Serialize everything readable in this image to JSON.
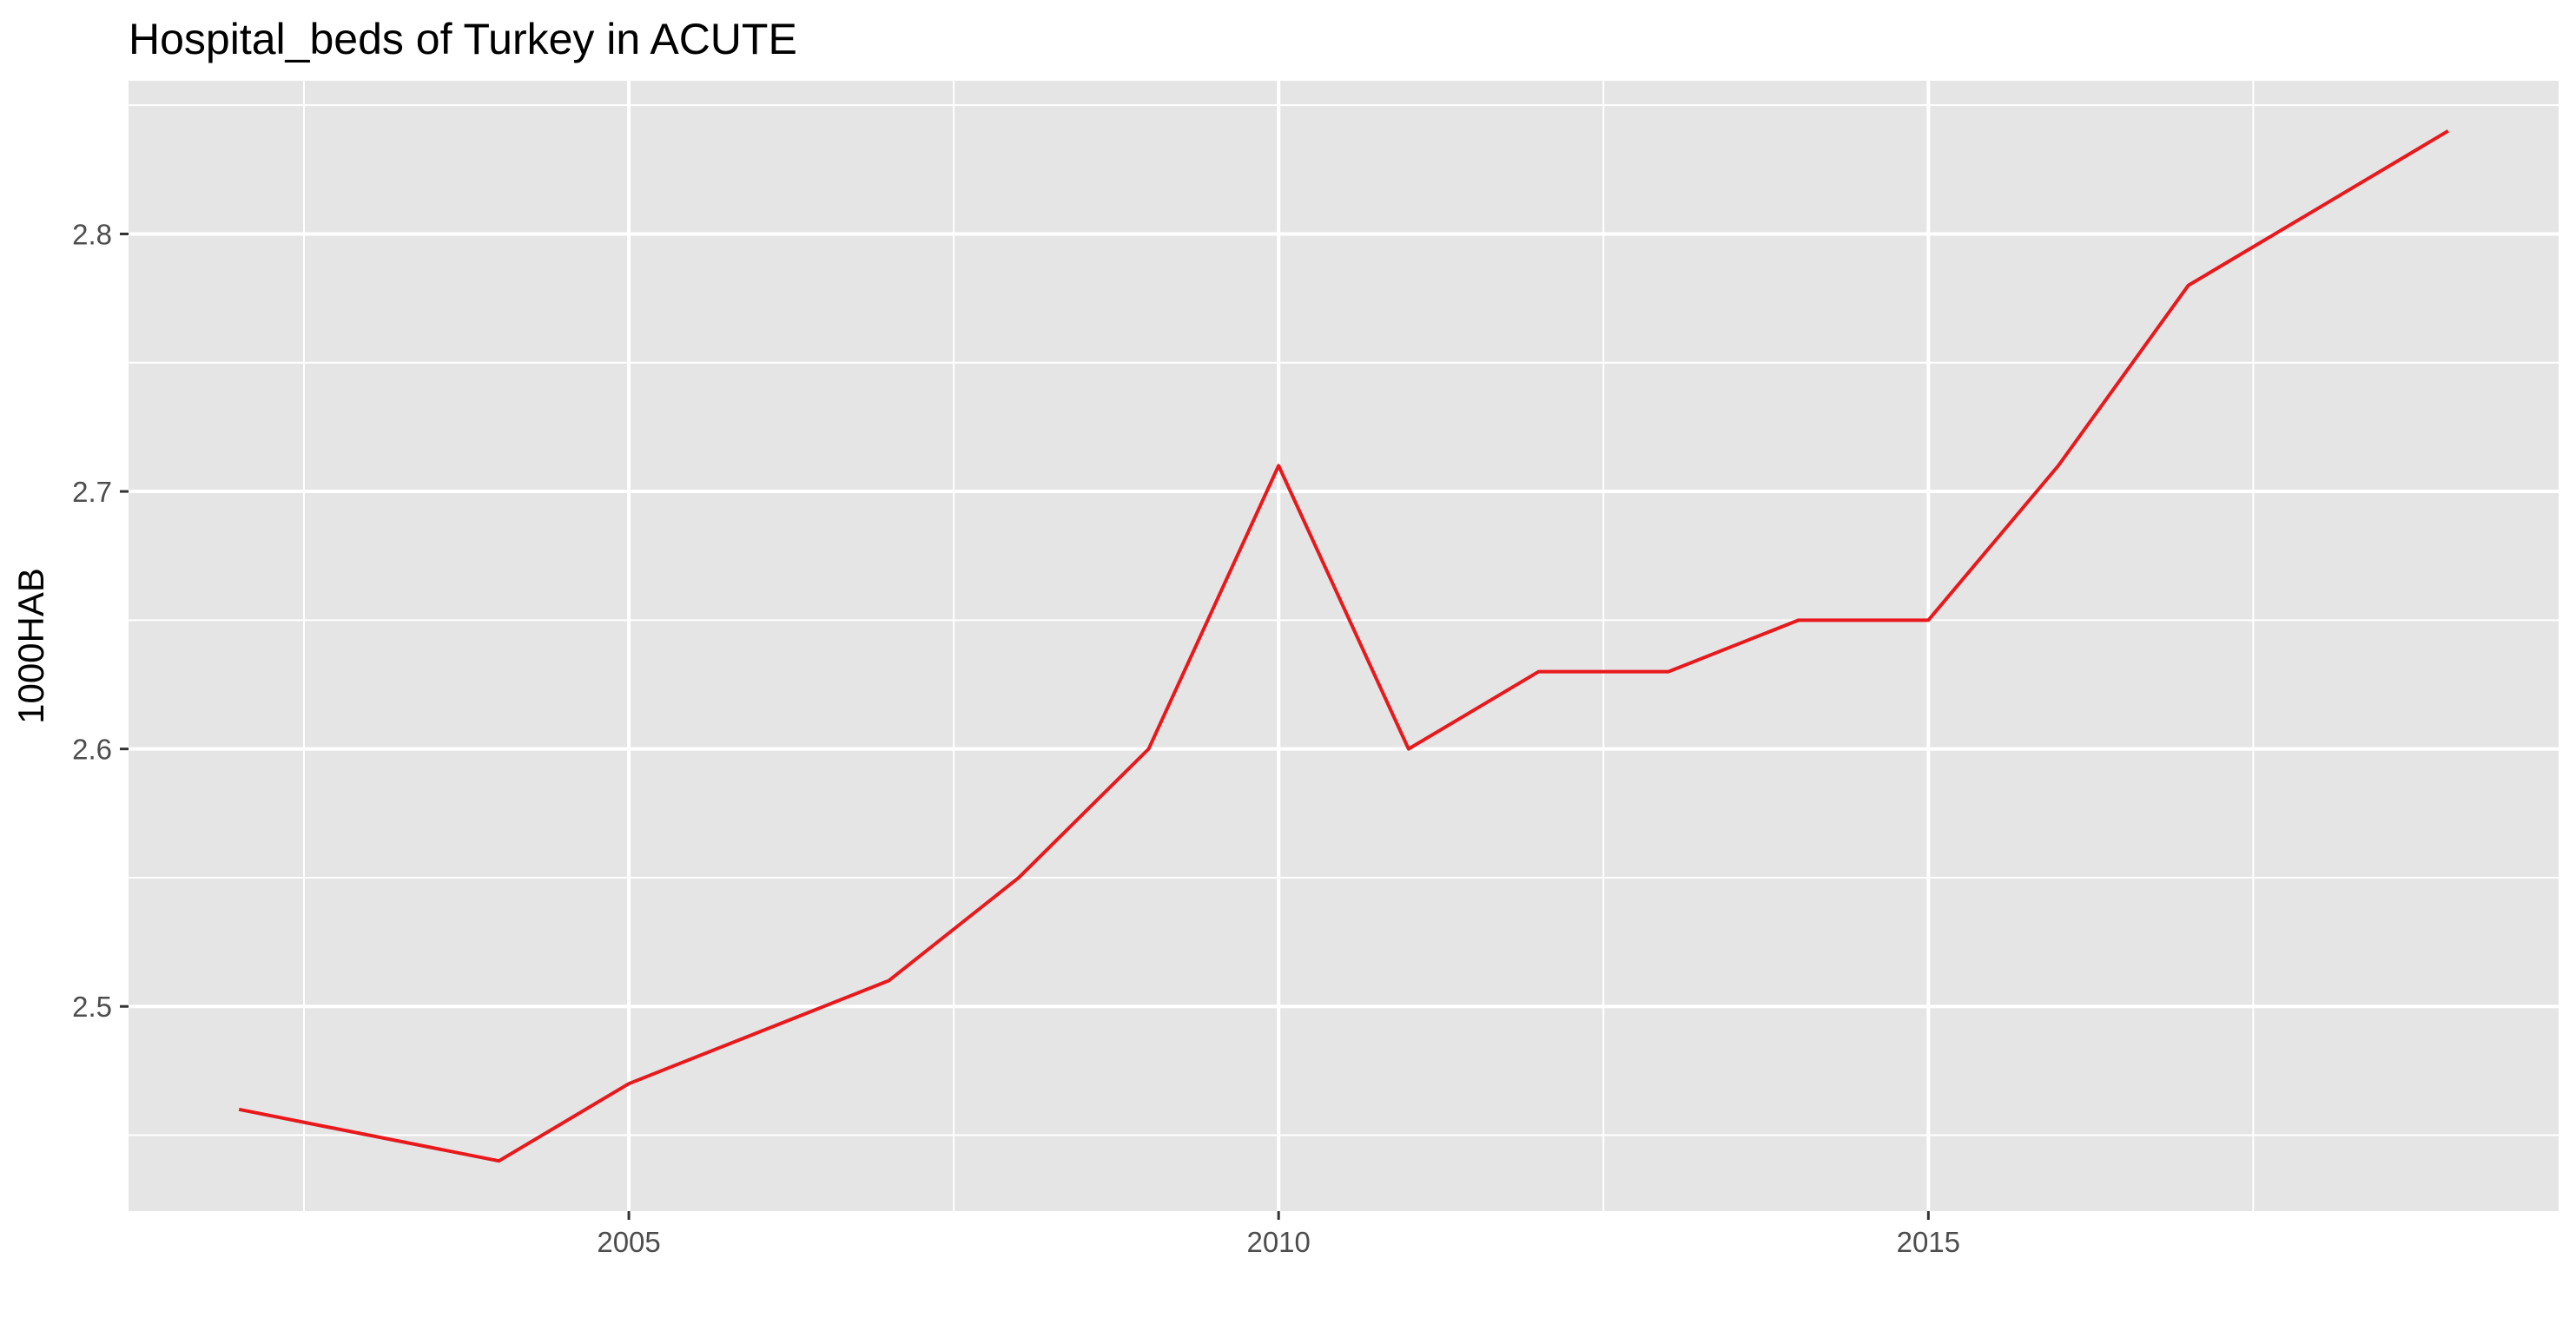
{
  "chart_data": {
    "type": "line",
    "title": "Hospital_beds of Turkey in ACUTE",
    "xlabel": "",
    "ylabel": "1000HAB",
    "x": [
      2002,
      2003,
      2004,
      2005,
      2006,
      2007,
      2008,
      2009,
      2010,
      2011,
      2012,
      2013,
      2014,
      2015,
      2016,
      2017,
      2018,
      2019
    ],
    "series": [
      {
        "values": [
          2.46,
          2.45,
          2.44,
          2.47,
          2.49,
          2.51,
          2.55,
          2.6,
          2.71,
          2.6,
          2.63,
          2.63,
          2.65,
          2.65,
          2.71,
          2.78,
          2.81,
          2.84
        ],
        "color": "#e8191c"
      }
    ],
    "xlim": [
      2001.15,
      2019.85
    ],
    "ylim": [
      2.4205,
      2.8595
    ],
    "x_major_ticks": [
      2005,
      2010,
      2015
    ],
    "x_minor_ticks": [
      2002.5,
      2007.5,
      2012.5,
      2017.5
    ],
    "y_major_ticks": [
      2.5,
      2.6,
      2.7,
      2.8
    ],
    "y_minor_ticks": [
      2.45,
      2.55,
      2.65,
      2.75,
      2.85
    ],
    "x_tick_labels": [
      "2005",
      "2010",
      "2015"
    ],
    "y_tick_labels": [
      "2.5",
      "2.6",
      "2.7",
      "2.8"
    ],
    "grid": true,
    "legend": "none",
    "colors": {
      "panel_background": "#e5e5e5",
      "grid_line": "#ffffff",
      "tick_mark": "#333333",
      "tick_label": "#4d4d4d",
      "text": "#000000"
    }
  }
}
